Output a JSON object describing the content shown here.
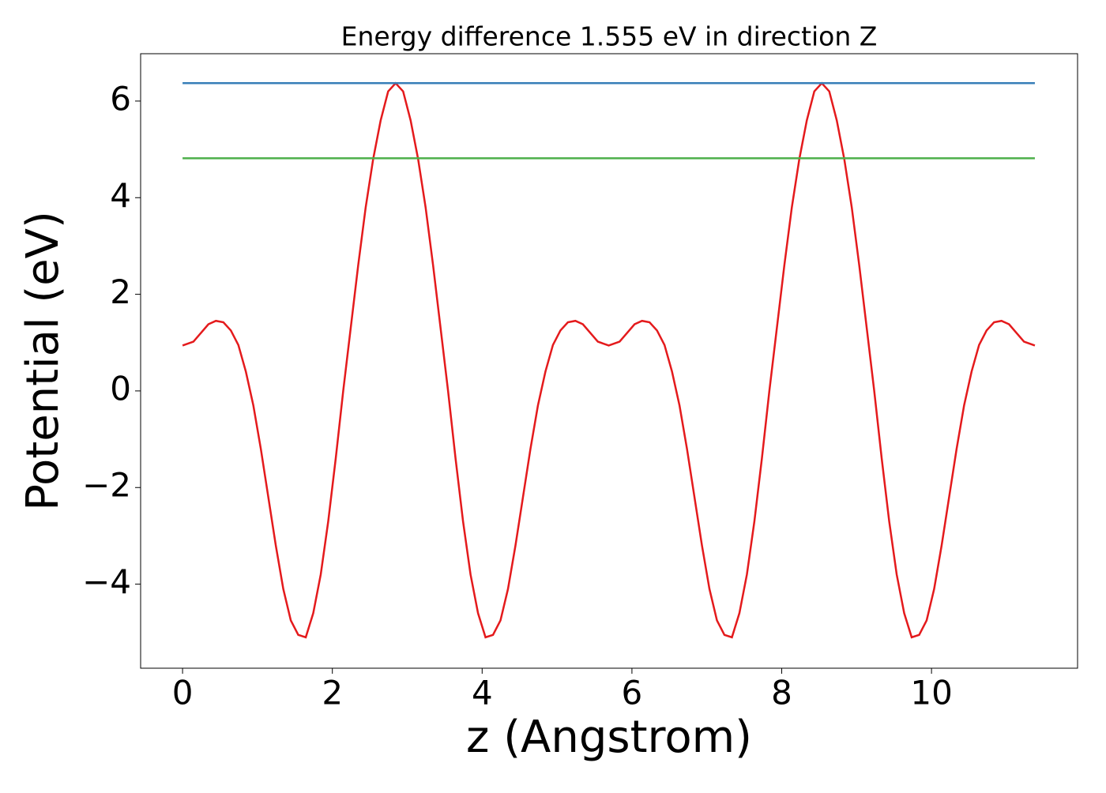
{
  "chart_data": {
    "type": "line",
    "title": "Energy difference 1.555 eV in direction Z",
    "xlabel": "z (Angstrom)",
    "ylabel": "Potential (eV)",
    "xlim": [
      -0.56,
      11.95
    ],
    "ylim": [
      -5.74,
      6.98
    ],
    "xticks": [
      0,
      2,
      4,
      6,
      8,
      10
    ],
    "yticks": [
      {
        "value": -4,
        "label": "−4"
      },
      {
        "value": -2,
        "label": "−2"
      },
      0,
      2,
      4,
      6
    ],
    "series": [
      {
        "color": "#e41a1c",
        "x": [
          0,
          0.145,
          0.245,
          0.345,
          0.445,
          0.545,
          0.645,
          0.745,
          0.845,
          0.945,
          1.045,
          1.145,
          1.245,
          1.345,
          1.445,
          1.545,
          1.645,
          1.745,
          1.845,
          1.945,
          2.045,
          2.145,
          2.245,
          2.345,
          2.445,
          2.545,
          2.645,
          2.745,
          2.845,
          2.945,
          3.045,
          3.145,
          3.245,
          3.345,
          3.445,
          3.545,
          3.645,
          3.745,
          3.845,
          3.945,
          4.045,
          4.145,
          4.245,
          4.345,
          4.445,
          4.545,
          4.645,
          4.745,
          4.845,
          4.945,
          5.045,
          5.145,
          5.245,
          5.345,
          5.445,
          5.545,
          5.69,
          5.835,
          5.935,
          6.035,
          6.135,
          6.235,
          6.335,
          6.435,
          6.535,
          6.635,
          6.735,
          6.835,
          6.935,
          7.035,
          7.135,
          7.235,
          7.335,
          7.435,
          7.535,
          7.635,
          7.735,
          7.835,
          7.935,
          8.035,
          8.135,
          8.235,
          8.335,
          8.435,
          8.535,
          8.635,
          8.735,
          8.835,
          8.935,
          9.035,
          9.135,
          9.235,
          9.335,
          9.435,
          9.535,
          9.635,
          9.735,
          9.835,
          9.935,
          10.035,
          10.135,
          10.235,
          10.335,
          10.435,
          10.535,
          10.635,
          10.735,
          10.835,
          10.935,
          11.035,
          11.135,
          11.235,
          11.38
        ],
        "values": [
          0.94,
          1.02,
          1.2,
          1.38,
          1.45,
          1.42,
          1.25,
          0.95,
          0.4,
          -0.3,
          -1.2,
          -2.2,
          -3.2,
          -4.1,
          -4.75,
          -5.05,
          -5.1,
          -4.6,
          -3.8,
          -2.7,
          -1.4,
          0.0,
          1.3,
          2.6,
          3.8,
          4.8,
          5.6,
          6.2,
          6.37,
          6.2,
          5.6,
          4.8,
          3.8,
          2.6,
          1.3,
          0.0,
          -1.4,
          -2.7,
          -3.8,
          -4.6,
          -5.1,
          -5.05,
          -4.75,
          -4.1,
          -3.2,
          -2.2,
          -1.2,
          -0.3,
          0.4,
          0.95,
          1.25,
          1.42,
          1.45,
          1.38,
          1.2,
          1.02,
          0.94,
          1.02,
          1.2,
          1.38,
          1.45,
          1.42,
          1.25,
          0.95,
          0.4,
          -0.3,
          -1.2,
          -2.2,
          -3.2,
          -4.1,
          -4.75,
          -5.05,
          -5.1,
          -4.6,
          -3.8,
          -2.7,
          -1.4,
          0.0,
          1.3,
          2.6,
          3.8,
          4.8,
          5.6,
          6.2,
          6.37,
          6.2,
          5.6,
          4.8,
          3.8,
          2.6,
          1.3,
          0.0,
          -1.4,
          -2.7,
          -3.8,
          -4.6,
          -5.1,
          -5.05,
          -4.75,
          -4.1,
          -3.2,
          -2.2,
          -1.2,
          -0.3,
          0.4,
          0.95,
          1.25,
          1.42,
          1.45,
          1.38,
          1.2,
          1.02,
          0.94
        ]
      },
      {
        "color": "#377eb8",
        "x": [
          0,
          11.38
        ],
        "values": [
          6.37,
          6.37
        ]
      },
      {
        "color": "#4daf4a",
        "x": [
          0,
          11.38
        ],
        "values": [
          4.815,
          4.815
        ]
      }
    ]
  }
}
